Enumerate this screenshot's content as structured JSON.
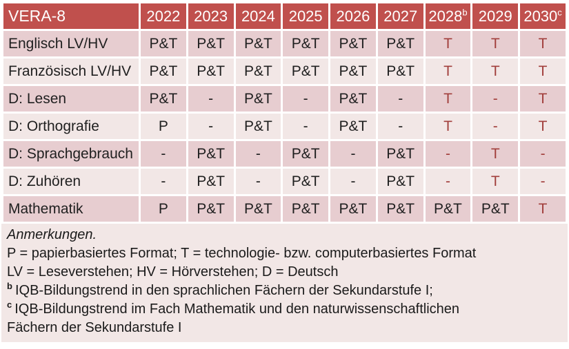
{
  "table": {
    "title": "VERA-8",
    "year_columns": [
      {
        "label": "2022",
        "sup": ""
      },
      {
        "label": "2023",
        "sup": ""
      },
      {
        "label": "2024",
        "sup": ""
      },
      {
        "label": "2025",
        "sup": ""
      },
      {
        "label": "2026",
        "sup": ""
      },
      {
        "label": "2027",
        "sup": ""
      },
      {
        "label": "2028",
        "sup": "b"
      },
      {
        "label": "2029",
        "sup": ""
      },
      {
        "label": "2030",
        "sup": "c"
      }
    ],
    "rows": [
      {
        "label": "Englisch LV/HV",
        "values": [
          "P&T",
          "P&T",
          "P&T",
          "P&T",
          "P&T",
          "P&T",
          "T",
          "T",
          "T"
        ],
        "highlight": [
          false,
          false,
          false,
          false,
          false,
          false,
          true,
          true,
          true
        ]
      },
      {
        "label": "Französisch LV/HV",
        "values": [
          "P&T",
          "P&T",
          "P&T",
          "P&T",
          "P&T",
          "P&T",
          "T",
          "T",
          "T"
        ],
        "highlight": [
          false,
          false,
          false,
          false,
          false,
          false,
          true,
          true,
          true
        ]
      },
      {
        "label": "D: Lesen",
        "values": [
          "P&T",
          "-",
          "P&T",
          "-",
          "P&T",
          "-",
          "T",
          "-",
          "T"
        ],
        "highlight": [
          false,
          false,
          false,
          false,
          false,
          false,
          true,
          true,
          true
        ]
      },
      {
        "label": "D: Orthografie",
        "values": [
          "P",
          "-",
          "P&T",
          "-",
          "P&T",
          "-",
          "T",
          "-",
          "T"
        ],
        "highlight": [
          false,
          false,
          false,
          false,
          false,
          false,
          true,
          true,
          true
        ]
      },
      {
        "label": "D: Sprachgebrauch",
        "values": [
          "-",
          "P&T",
          "-",
          "P&T",
          "-",
          "P&T",
          "-",
          "T",
          "-"
        ],
        "highlight": [
          false,
          false,
          false,
          false,
          false,
          false,
          true,
          true,
          true
        ]
      },
      {
        "label": "D: Zuhören",
        "values": [
          "-",
          "P&T",
          "-",
          "P&T",
          "-",
          "P&T",
          "-",
          "T",
          "-"
        ],
        "highlight": [
          false,
          false,
          false,
          false,
          false,
          false,
          true,
          true,
          true
        ]
      },
      {
        "label": "Mathematik",
        "values": [
          "P",
          "P&T",
          "P&T",
          "P&T",
          "P&T",
          "P&T",
          "P&T",
          "P&T",
          "T"
        ],
        "highlight": [
          false,
          false,
          false,
          false,
          false,
          false,
          false,
          false,
          true
        ]
      }
    ]
  },
  "notes": {
    "heading": "Anmerkungen.",
    "format_legend": "P = papierbasiertes Format; T = technologie- bzw. computerbasiertes Format",
    "abbreviation_legend": "LV = Leseverstehen; HV = Hörverstehen; D = Deutsch",
    "note_b_marker": "b",
    "note_b_text": "IQB-Bildungstrend in den sprachlichen Fächern der Sekundarstufe I;",
    "note_c_marker": "c",
    "note_c_text": "IQB-Bildungstrend im Fach Mathematik und den naturwissenschaftlichen",
    "note_c_text_cont": "Fächern der Sekundarstufe I"
  },
  "colors": {
    "header_bg": "#C0504D",
    "row_dark_bg": "#E7CDD0",
    "row_light_bg": "#F2E7E6",
    "notes_bg": "#F2E7E6",
    "accent_text": "#A13E3B",
    "header_text": "#FFFFFF",
    "body_text": "#1F1F1F"
  }
}
